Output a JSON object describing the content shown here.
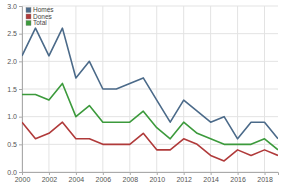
{
  "chart_data": {
    "type": "line",
    "x": [
      2000,
      2001,
      2002,
      2003,
      2004,
      2005,
      2006,
      2007,
      2008,
      2009,
      2010,
      2011,
      2012,
      2013,
      2014,
      2015,
      2016,
      2017,
      2018,
      2019
    ],
    "series": [
      {
        "name": "Homes",
        "color": "#4b6a89",
        "values": [
          2.1,
          2.6,
          2.1,
          2.6,
          1.7,
          2.0,
          1.5,
          1.5,
          1.6,
          1.7,
          1.3,
          0.9,
          1.3,
          1.1,
          0.9,
          1.0,
          0.6,
          0.9,
          0.9,
          0.6
        ]
      },
      {
        "name": "Dones",
        "color": "#b03a3a",
        "values": [
          0.9,
          0.6,
          0.7,
          0.9,
          0.6,
          0.6,
          0.5,
          0.5,
          0.5,
          0.7,
          0.4,
          0.4,
          0.6,
          0.5,
          0.3,
          0.2,
          0.4,
          0.3,
          0.4,
          0.3
        ]
      },
      {
        "name": "Total",
        "color": "#3c9a3c",
        "values": [
          1.4,
          1.4,
          1.3,
          1.6,
          1.0,
          1.2,
          0.9,
          0.9,
          0.9,
          1.1,
          0.8,
          0.6,
          0.9,
          0.7,
          0.6,
          0.5,
          0.5,
          0.5,
          0.6,
          0.4
        ]
      }
    ],
    "xlim": [
      2000,
      2019
    ],
    "xticks": [
      2000,
      2002,
      2004,
      2006,
      2008,
      2010,
      2012,
      2014,
      2016,
      2018
    ],
    "ylim": [
      0,
      3
    ],
    "yticks": [
      {
        "value": 0,
        "label": "0.0"
      },
      0.5,
      {
        "value": 1,
        "label": "1.0"
      },
      1.5,
      {
        "value": 2,
        "label": "2.0"
      },
      2.5,
      {
        "value": 3,
        "label": "3.0"
      }
    ],
    "grid": true,
    "legend": "top-left"
  }
}
